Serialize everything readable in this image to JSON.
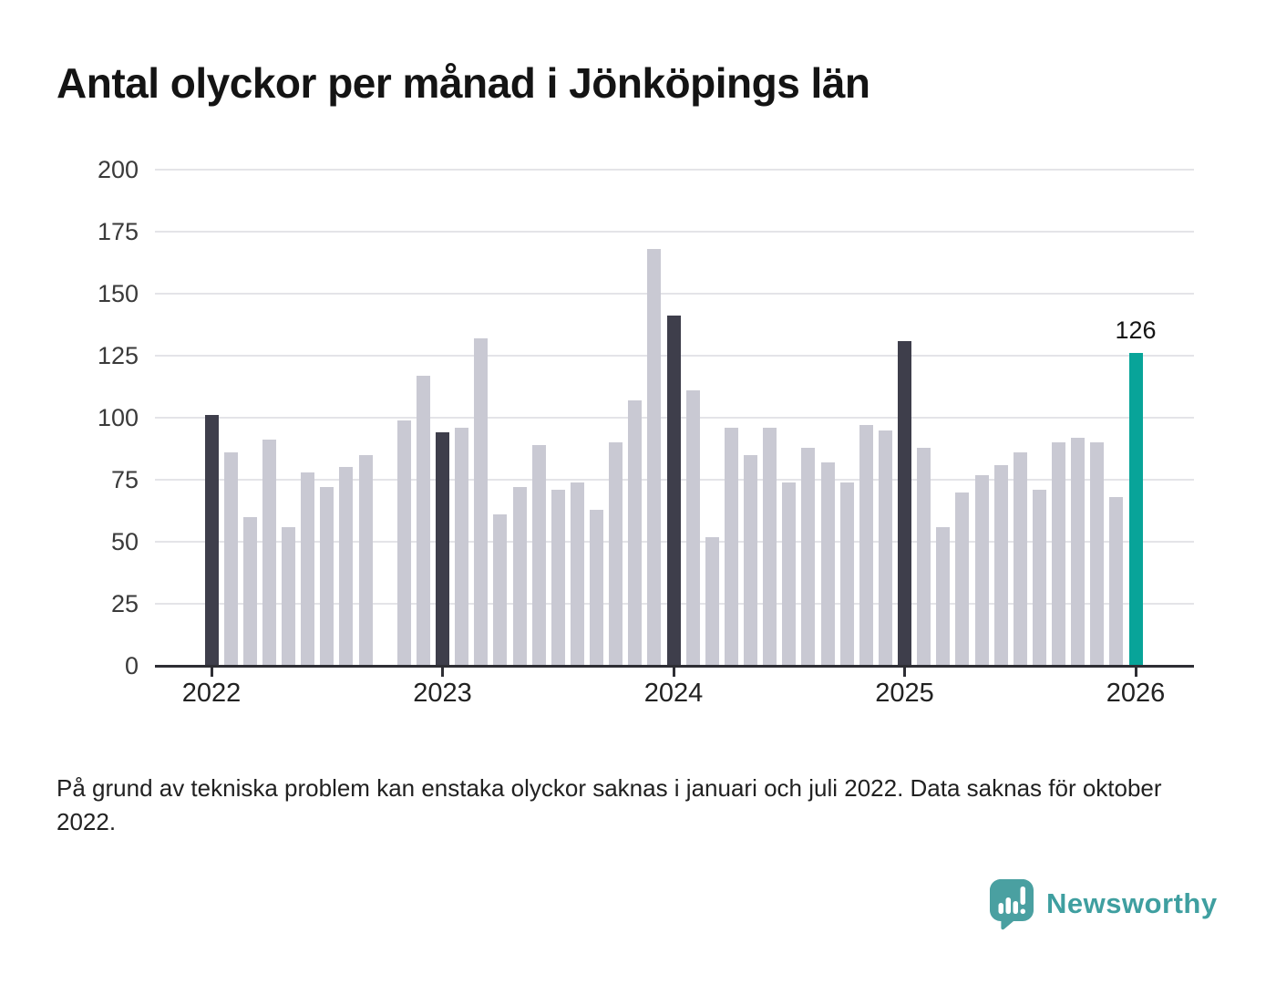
{
  "title": "Antal olyckor per månad i Jönköpings län",
  "note": "På grund av tekniska problem kan enstaka olyckor saknas i januari och juli 2022. Data saknas för oktober 2022.",
  "branding": {
    "name": "Newsworthy"
  },
  "chart_data": {
    "type": "bar",
    "title": "Antal olyckor per månad i Jönköpings län",
    "xlabel": "",
    "ylabel": "",
    "ylim": [
      0,
      200
    ],
    "yticks": [
      0,
      25,
      50,
      75,
      100,
      125,
      150,
      175,
      200
    ],
    "xtick_labels": [
      "2022",
      "2023",
      "2024",
      "2025",
      "2026"
    ],
    "grid": true,
    "legend": "none",
    "x": [
      "2022-01",
      "2022-02",
      "2022-03",
      "2022-04",
      "2022-05",
      "2022-06",
      "2022-07",
      "2022-08",
      "2022-09",
      "2022-10",
      "2022-11",
      "2022-12",
      "2023-01",
      "2023-02",
      "2023-03",
      "2023-04",
      "2023-05",
      "2023-06",
      "2023-07",
      "2023-08",
      "2023-09",
      "2023-10",
      "2023-11",
      "2023-12",
      "2024-01",
      "2024-02",
      "2024-03",
      "2024-04",
      "2024-05",
      "2024-06",
      "2024-07",
      "2024-08",
      "2024-09",
      "2024-10",
      "2024-11",
      "2024-12",
      "2025-01",
      "2025-02",
      "2025-03",
      "2025-04",
      "2025-05",
      "2025-06",
      "2025-07",
      "2025-08",
      "2025-09",
      "2025-10",
      "2025-11",
      "2025-12",
      "2026-01"
    ],
    "values": [
      101,
      86,
      60,
      91,
      56,
      78,
      72,
      80,
      85,
      null,
      99,
      117,
      94,
      96,
      132,
      61,
      72,
      89,
      71,
      74,
      63,
      90,
      107,
      168,
      141,
      111,
      52,
      96,
      85,
      96,
      74,
      88,
      82,
      74,
      97,
      95,
      131,
      88,
      56,
      70,
      77,
      81,
      86,
      71,
      90,
      92,
      90,
      68,
      126
    ],
    "missing_x": [
      "2022-10"
    ],
    "highlight_x": [
      "2022-01",
      "2023-01",
      "2024-01",
      "2025-01"
    ],
    "latest_x": "2026-01",
    "latest_value_label": "126",
    "colors": {
      "bar_default": "#c9c9d3",
      "bar_highlight": "#3e3e4b",
      "bar_latest": "#08a499",
      "gridline": "#e4e4e8",
      "axis": "#2e2e34"
    }
  }
}
